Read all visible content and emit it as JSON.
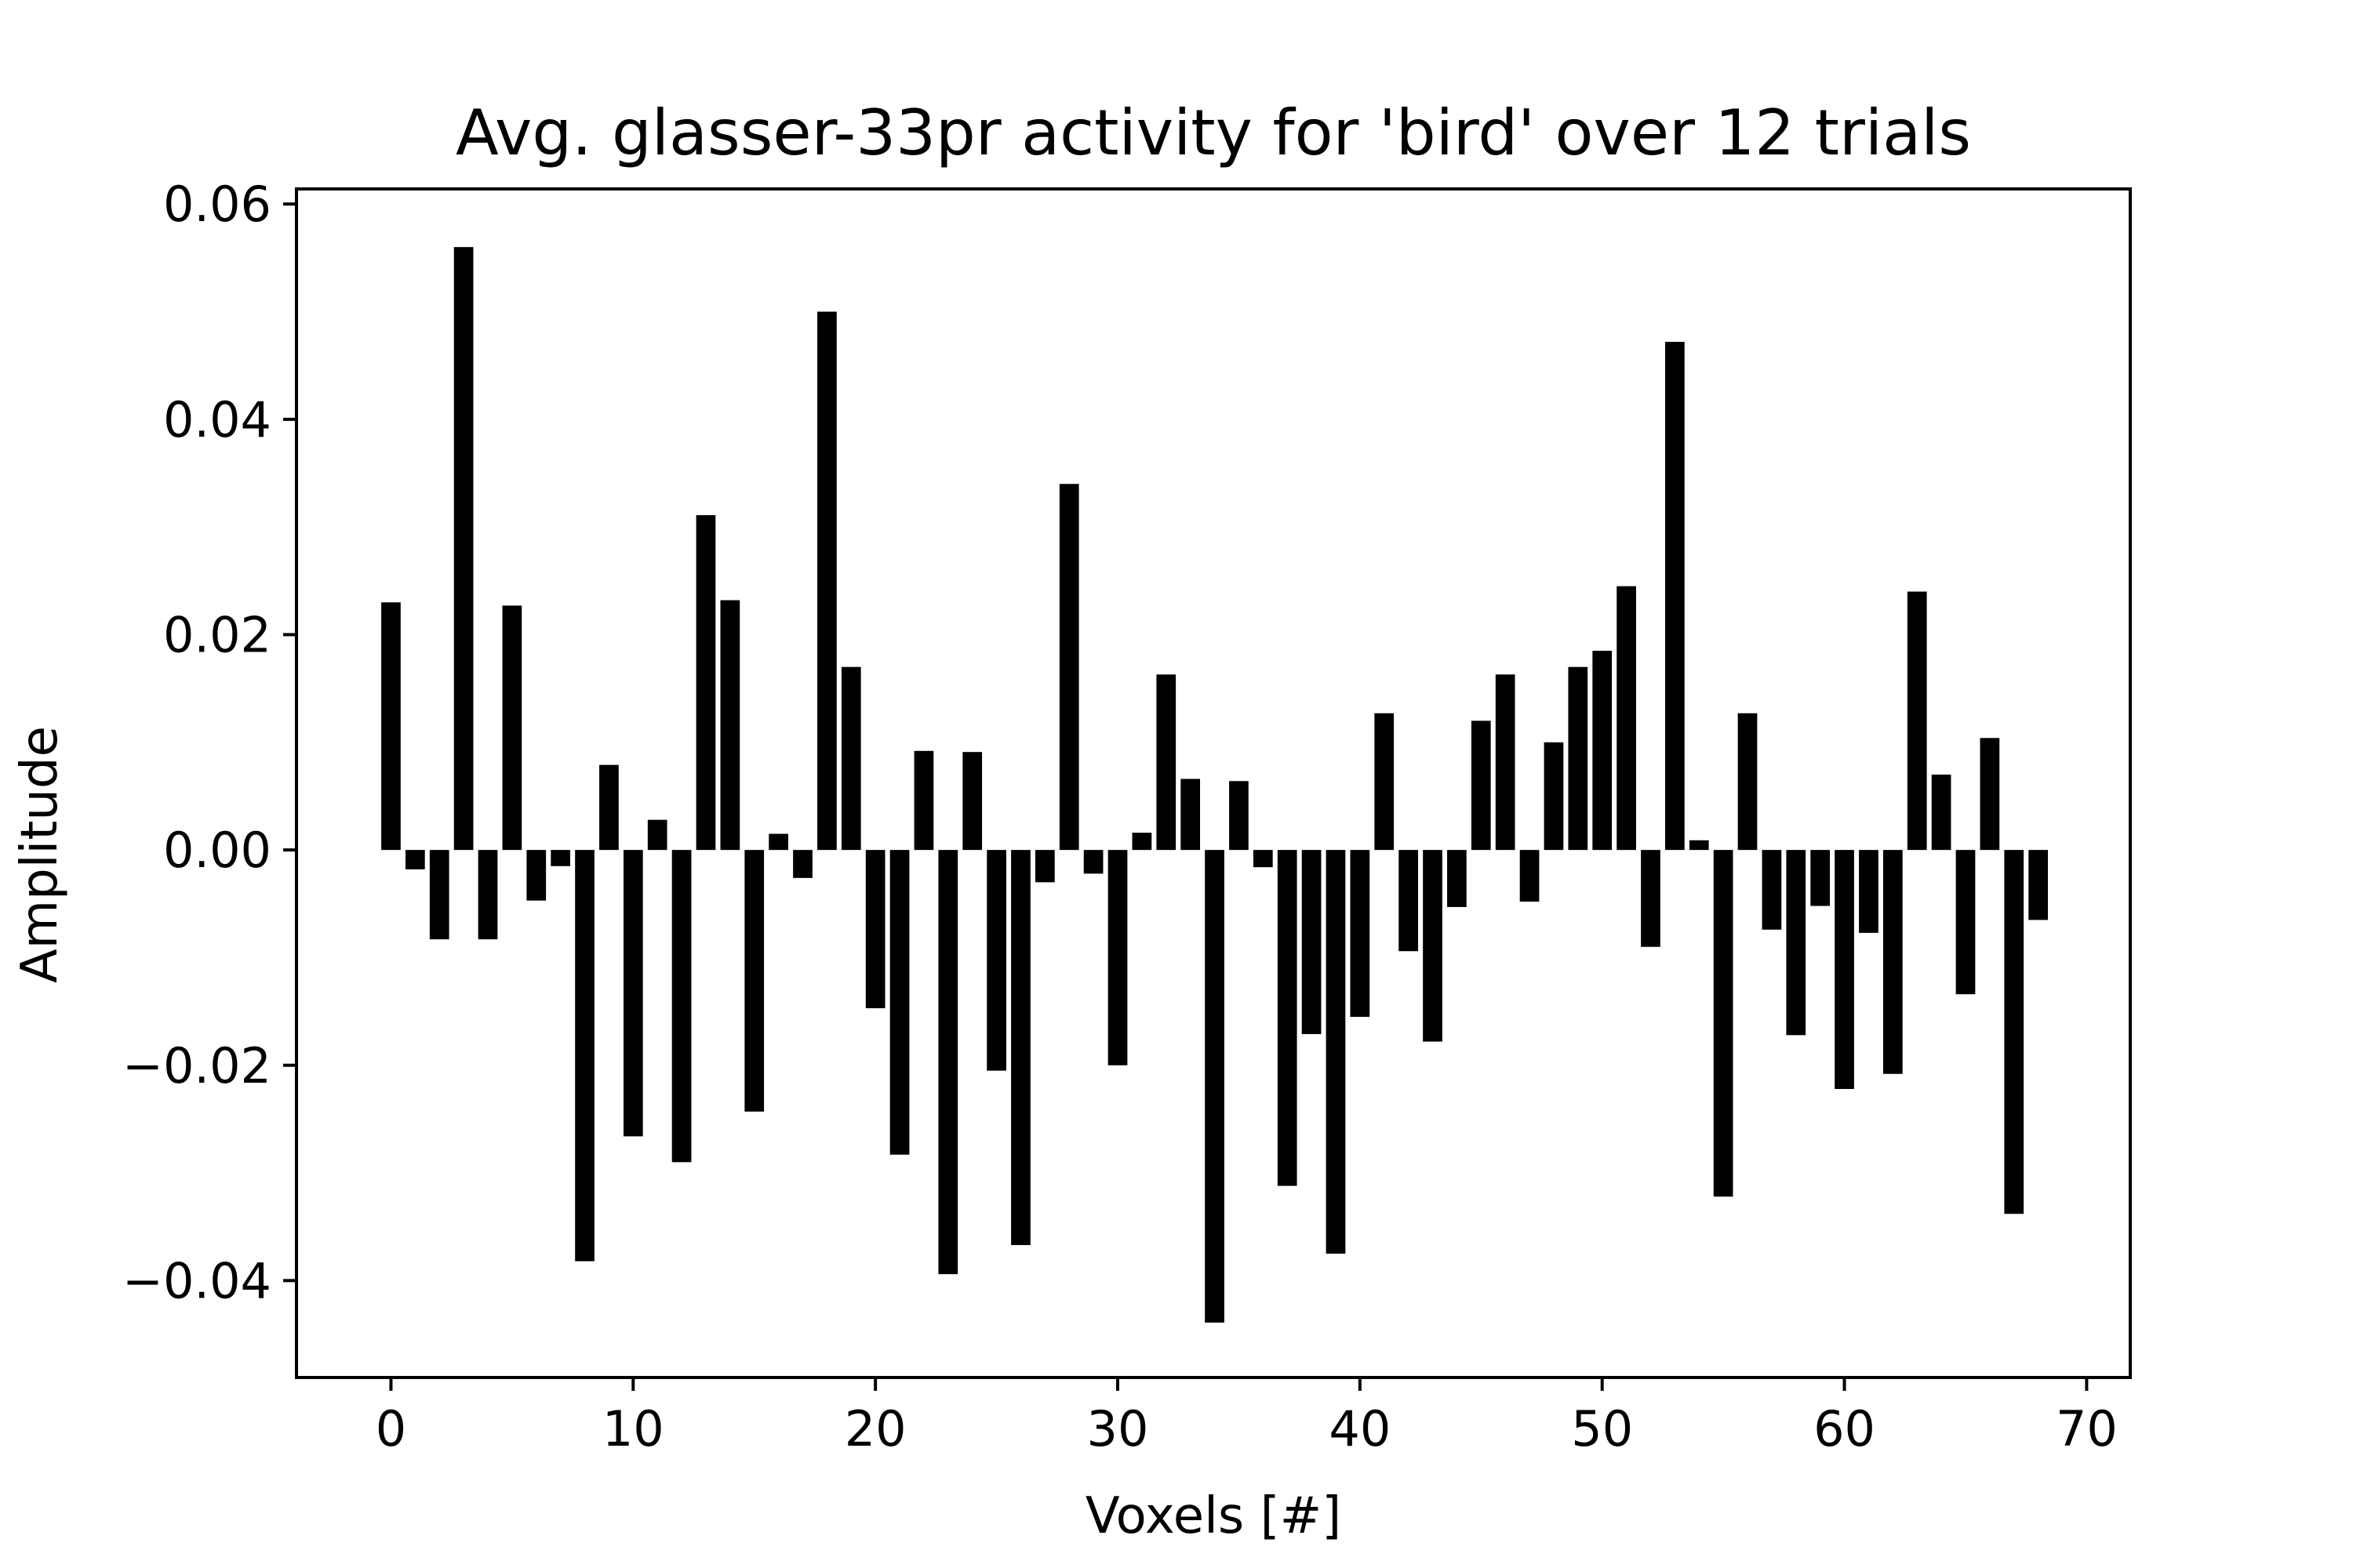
{
  "chart_data": {
    "type": "bar",
    "title": "Avg. glasser-33pr activity for 'bird' over 12 trials",
    "xlabel": "Voxels [#]",
    "ylabel": "Amplitude",
    "xlim": [
      -3.9,
      71.8
    ],
    "ylim": [
      -0.049,
      0.0614
    ],
    "x_ticks": [
      0,
      10,
      20,
      30,
      40,
      50,
      60,
      70
    ],
    "x_tick_labels": [
      "0",
      "10",
      "20",
      "30",
      "40",
      "50",
      "60",
      "70"
    ],
    "y_ticks": [
      -0.04,
      -0.02,
      0.0,
      0.02,
      0.04,
      0.06
    ],
    "y_tick_labels": [
      "−0.04",
      "−0.02",
      "0.00",
      "0.02",
      "0.04",
      "0.06"
    ],
    "grid": false,
    "bar_color": "#000000",
    "x": [
      0,
      1,
      2,
      3,
      4,
      5,
      6,
      7,
      8,
      9,
      10,
      11,
      12,
      13,
      14,
      15,
      16,
      17,
      18,
      19,
      20,
      21,
      22,
      23,
      24,
      25,
      26,
      27,
      28,
      29,
      30,
      31,
      32,
      33,
      34,
      35,
      36,
      37,
      38,
      39,
      40,
      41,
      42,
      43,
      44,
      45,
      46,
      47,
      48,
      49,
      50,
      51,
      52,
      53,
      54,
      55,
      56,
      57,
      58,
      59,
      60,
      61,
      62,
      63,
      64,
      65,
      66,
      67,
      68
    ],
    "values": [
      0.023,
      -0.0018,
      -0.0083,
      0.056,
      -0.0083,
      0.0227,
      -0.0047,
      -0.0015,
      -0.0382,
      0.0079,
      -0.0266,
      0.0028,
      -0.029,
      0.0311,
      0.0232,
      -0.0243,
      0.0015,
      -0.0026,
      0.05,
      0.017,
      -0.0147,
      -0.0283,
      0.0092,
      -0.0394,
      0.0091,
      -0.0205,
      -0.0367,
      -0.003,
      0.034,
      -0.0022,
      -0.02,
      0.0016,
      0.0163,
      0.0066,
      -0.0439,
      0.0064,
      -0.0016,
      -0.0312,
      -0.0171,
      -0.0375,
      -0.0155,
      0.0127,
      -0.0094,
      -0.0178,
      -0.0053,
      0.012,
      0.0163,
      -0.0048,
      0.01,
      0.017,
      0.0185,
      0.0245,
      -0.009,
      0.0472,
      0.0009,
      -0.0322,
      0.0127,
      -0.0074,
      -0.0172,
      -0.0052,
      -0.0222,
      -0.0077,
      -0.0208,
      0.024,
      0.007,
      -0.0134,
      0.0104,
      -0.0338,
      -0.0065
    ]
  }
}
